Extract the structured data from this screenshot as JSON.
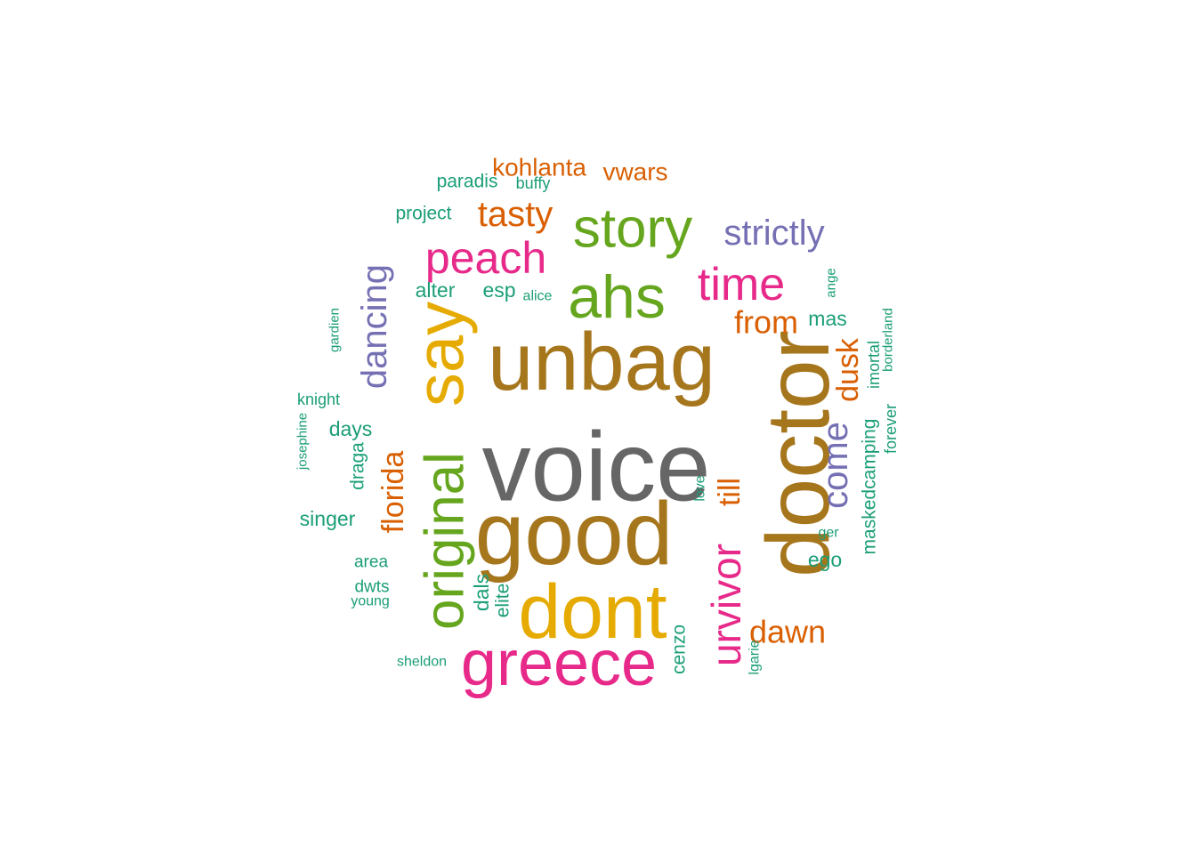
{
  "palette": {
    "teal": "#1b9e77",
    "orange": "#d95f02",
    "purple": "#7570b3",
    "pink": "#e7298a",
    "green": "#66a61e",
    "gold": "#e6ab02",
    "brown": "#a6761d",
    "gray": "#666666"
  },
  "words": [
    {
      "text": "voice",
      "color": "gray"
    },
    {
      "text": "good",
      "color": "brown"
    },
    {
      "text": "unbag",
      "color": "brown"
    },
    {
      "text": "doctor",
      "color": "brown"
    },
    {
      "text": "dont",
      "color": "gold"
    },
    {
      "text": "say",
      "color": "gold"
    },
    {
      "text": "greece",
      "color": "pink"
    },
    {
      "text": "original",
      "color": "green"
    },
    {
      "text": "ahs",
      "color": "green"
    },
    {
      "text": "story",
      "color": "green"
    },
    {
      "text": "urvivor",
      "color": "pink"
    },
    {
      "text": "peach",
      "color": "pink"
    },
    {
      "text": "time",
      "color": "pink"
    },
    {
      "text": "strictly",
      "color": "purple"
    },
    {
      "text": "dancing",
      "color": "purple"
    },
    {
      "text": "come",
      "color": "purple"
    },
    {
      "text": "tasty",
      "color": "orange"
    },
    {
      "text": "from",
      "color": "orange"
    },
    {
      "text": "dawn",
      "color": "orange"
    },
    {
      "text": "dusk",
      "color": "orange"
    },
    {
      "text": "florida",
      "color": "orange"
    },
    {
      "text": "till",
      "color": "orange"
    },
    {
      "text": "kohlanta",
      "color": "orange"
    },
    {
      "text": "vwars",
      "color": "orange"
    },
    {
      "text": "paradis",
      "color": "teal"
    },
    {
      "text": "buffy",
      "color": "teal"
    },
    {
      "text": "project",
      "color": "teal"
    },
    {
      "text": "alter",
      "color": "teal"
    },
    {
      "text": "esp",
      "color": "teal"
    },
    {
      "text": "alice",
      "color": "teal"
    },
    {
      "text": "mas",
      "color": "teal"
    },
    {
      "text": "ange",
      "color": "teal"
    },
    {
      "text": "borderland",
      "color": "teal"
    },
    {
      "text": "imortal",
      "color": "teal"
    },
    {
      "text": "forever",
      "color": "teal"
    },
    {
      "text": "maskedcamping",
      "color": "teal"
    },
    {
      "text": "ger",
      "color": "teal"
    },
    {
      "text": "ego",
      "color": "teal"
    },
    {
      "text": "love",
      "color": "teal"
    },
    {
      "text": "lgarie",
      "color": "teal"
    },
    {
      "text": "cenzo",
      "color": "teal"
    },
    {
      "text": "dals",
      "color": "teal"
    },
    {
      "text": "elite",
      "color": "teal"
    },
    {
      "text": "gardien",
      "color": "teal"
    },
    {
      "text": "knight",
      "color": "teal"
    },
    {
      "text": "josephine",
      "color": "teal"
    },
    {
      "text": "days",
      "color": "teal"
    },
    {
      "text": "draga",
      "color": "teal"
    },
    {
      "text": "singer",
      "color": "teal"
    },
    {
      "text": "area",
      "color": "teal"
    },
    {
      "text": "dwts",
      "color": "teal"
    },
    {
      "text": "young",
      "color": "teal"
    },
    {
      "text": "sheldon",
      "color": "teal"
    }
  ]
}
